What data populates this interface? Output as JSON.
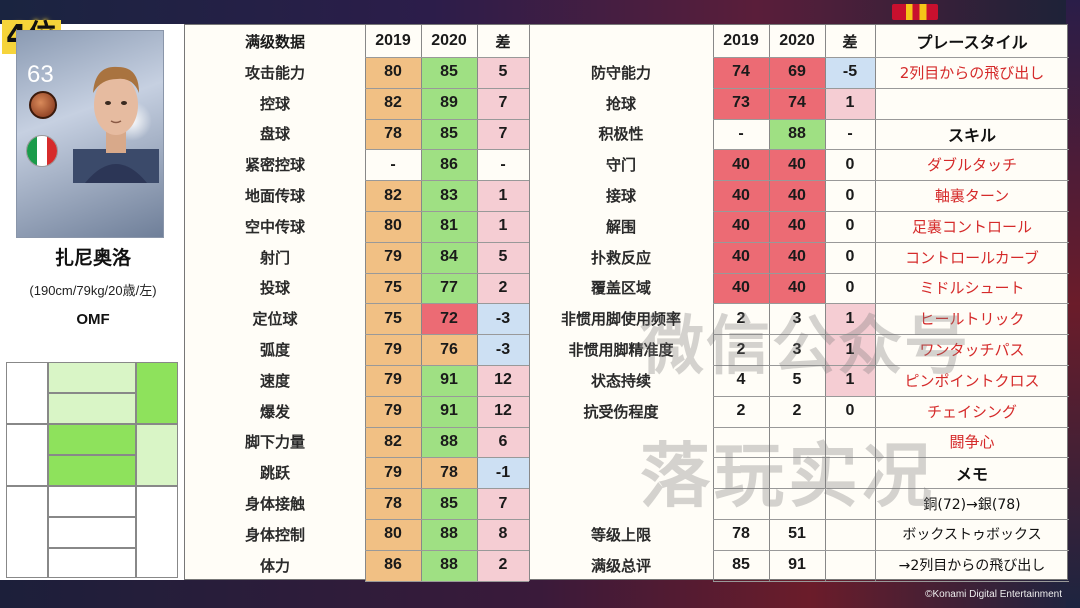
{
  "rank": "4位",
  "player": {
    "rating": "63",
    "name": "扎尼奥洛",
    "meta": "(190cm/79kg/20歳/左)",
    "position": "OMF"
  },
  "colors": {
    "orange": "#f1c084",
    "green": "#9fe083",
    "pink": "#f5cdd3",
    "red": "#ec6b74",
    "blue": "#cde0f3",
    "light_green": "#d9f5c6",
    "mid_green": "#8ee25c"
  },
  "table": {
    "header_left": {
      "label": "满级数据",
      "y2019": "2019",
      "y2020": "2020",
      "diff": "差"
    },
    "header_mid": {
      "y2019": "2019",
      "y2020": "2020",
      "diff": "差"
    },
    "left_rows": [
      {
        "label": "攻击能力",
        "v2019": "80",
        "v2020": "85",
        "diff": "5"
      },
      {
        "label": "控球",
        "v2019": "82",
        "v2020": "89",
        "diff": "7"
      },
      {
        "label": "盘球",
        "v2019": "78",
        "v2020": "85",
        "diff": "7"
      },
      {
        "label": "紧密控球",
        "v2019": "-",
        "v2020": "86",
        "diff": "-"
      },
      {
        "label": "地面传球",
        "v2019": "82",
        "v2020": "83",
        "diff": "1"
      },
      {
        "label": "空中传球",
        "v2019": "80",
        "v2020": "81",
        "diff": "1"
      },
      {
        "label": "射门",
        "v2019": "79",
        "v2020": "84",
        "diff": "5"
      },
      {
        "label": "投球",
        "v2019": "75",
        "v2020": "77",
        "diff": "2"
      },
      {
        "label": "定位球",
        "v2019": "75",
        "v2020": "72",
        "diff": "-3"
      },
      {
        "label": "弧度",
        "v2019": "79",
        "v2020": "76",
        "diff": "-3"
      },
      {
        "label": "速度",
        "v2019": "79",
        "v2020": "91",
        "diff": "12"
      },
      {
        "label": "爆发",
        "v2019": "79",
        "v2020": "91",
        "diff": "12"
      },
      {
        "label": "脚下力量",
        "v2019": "82",
        "v2020": "88",
        "diff": "6"
      },
      {
        "label": "跳跃",
        "v2019": "79",
        "v2020": "78",
        "diff": "-1"
      },
      {
        "label": "身体接触",
        "v2019": "78",
        "v2020": "85",
        "diff": "7"
      },
      {
        "label": "身体控制",
        "v2019": "80",
        "v2020": "88",
        "diff": "8"
      },
      {
        "label": "体力",
        "v2019": "86",
        "v2020": "88",
        "diff": "2"
      }
    ],
    "mid_rows": [
      {
        "label": "防守能力",
        "v2019": "74",
        "v2020": "69",
        "diff": "-5"
      },
      {
        "label": "抢球",
        "v2019": "73",
        "v2020": "74",
        "diff": "1"
      },
      {
        "label": "积极性",
        "v2019": "-",
        "v2020": "88",
        "diff": "-"
      },
      {
        "label": "守门",
        "v2019": "40",
        "v2020": "40",
        "diff": "0"
      },
      {
        "label": "接球",
        "v2019": "40",
        "v2020": "40",
        "diff": "0"
      },
      {
        "label": "解围",
        "v2019": "40",
        "v2020": "40",
        "diff": "0"
      },
      {
        "label": "扑救反应",
        "v2019": "40",
        "v2020": "40",
        "diff": "0"
      },
      {
        "label": "覆盖区域",
        "v2019": "40",
        "v2020": "40",
        "diff": "0"
      },
      {
        "label": "非惯用脚使用频率",
        "v2019": "2",
        "v2020": "3",
        "diff": "1"
      },
      {
        "label": "非惯用脚精准度",
        "v2019": "2",
        "v2020": "3",
        "diff": "1"
      },
      {
        "label": "状态持续",
        "v2019": "4",
        "v2020": "5",
        "diff": "1"
      },
      {
        "label": "抗受伤程度",
        "v2019": "2",
        "v2020": "2",
        "diff": "0"
      }
    ],
    "mid_bottom": [
      {
        "label": "等级上限",
        "v2019": "78",
        "v2020": "51"
      },
      {
        "label": "满级总评",
        "v2019": "85",
        "v2020": "91"
      }
    ],
    "right": {
      "playstyle_header": "プレースタイル",
      "playstyle": "2列目からの飛び出し",
      "skill_header": "スキル",
      "skills": [
        "ダブルタッチ",
        "軸裏ターン",
        "足裏コントロール",
        "コントロールカーブ",
        "ミドルシュート",
        "ヒールトリック",
        "ワンタッチパス",
        "ピンポイントクロス",
        "チェイシング",
        "闘争心"
      ],
      "memo_header": "メモ",
      "memo_lines": [
        "銅(72)→銀(78)",
        "ボックストゥボックス",
        "→2列目からの飛び出し"
      ]
    }
  },
  "watermark": {
    "line1": "微信公众号",
    "line2": "落玩实况"
  },
  "copyright": "©Konami Digital Entertainment"
}
